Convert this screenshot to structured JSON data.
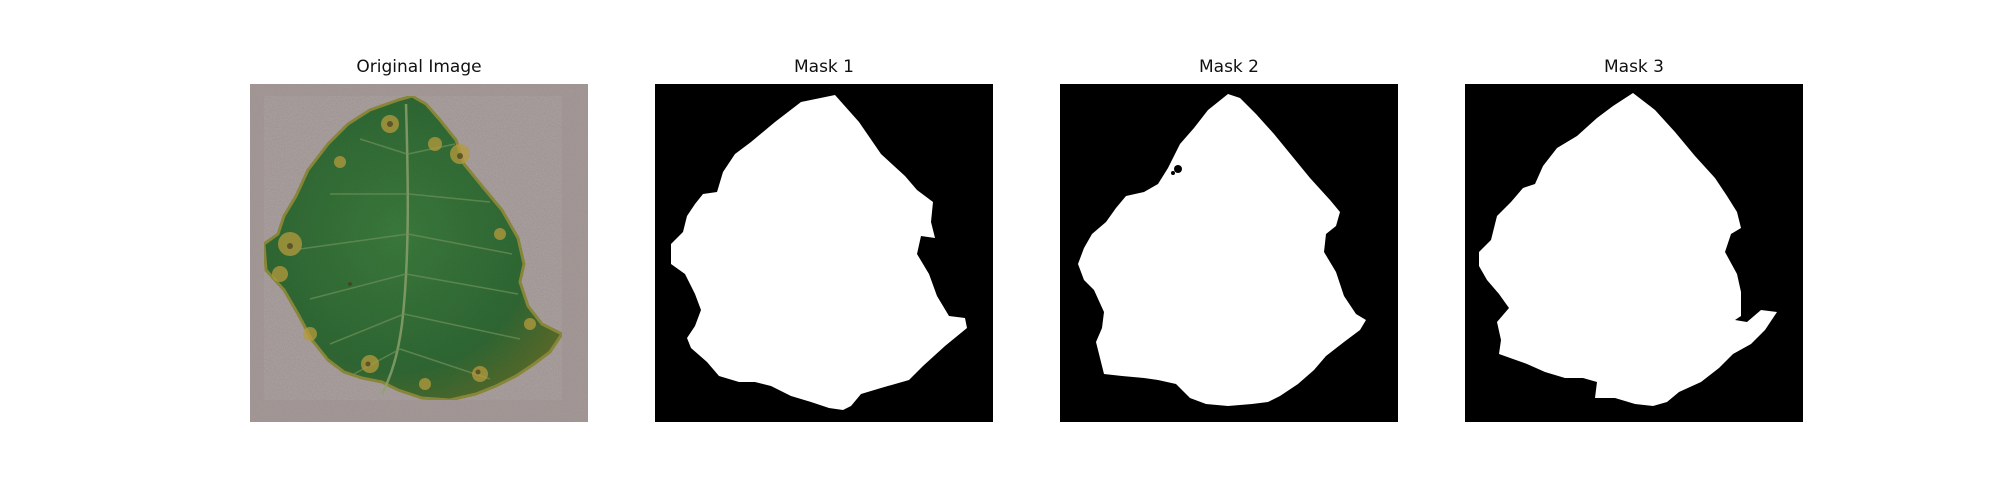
{
  "figure": {
    "background": "#ffffff",
    "panels": [
      {
        "title": "Original Image",
        "kind": "photo",
        "subject": "leaf",
        "colors": {
          "background": "#a59a98",
          "leaf": "#2f6a34",
          "spots": "#b59b3d"
        }
      },
      {
        "title": "Mask 1",
        "kind": "mask",
        "colors": {
          "background": "#000000",
          "foreground": "#ffffff"
        }
      },
      {
        "title": "Mask 2",
        "kind": "mask",
        "colors": {
          "background": "#000000",
          "foreground": "#ffffff"
        }
      },
      {
        "title": "Mask 3",
        "kind": "mask",
        "colors": {
          "background": "#000000",
          "foreground": "#ffffff"
        }
      }
    ]
  }
}
